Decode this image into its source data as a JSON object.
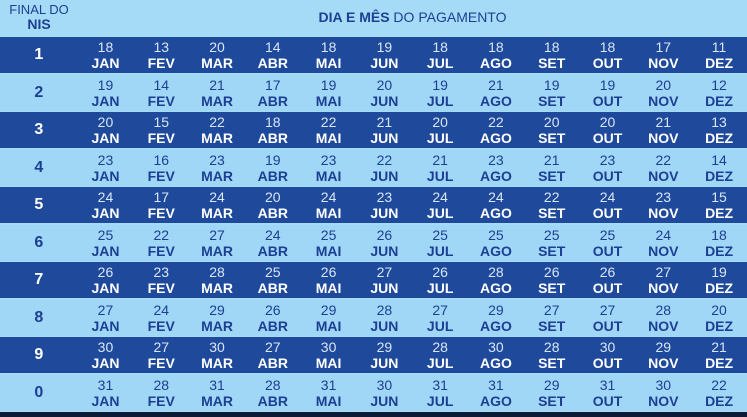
{
  "header": {
    "nis_label_top": "FINAL DO",
    "nis_label_bottom": "NIS",
    "title_bold": "DIA E MÊS",
    "title_rest": " DO PAGAMENTO"
  },
  "months": [
    "JAN",
    "FEV",
    "MAR",
    "ABR",
    "MAI",
    "JUN",
    "JUL",
    "AGO",
    "SET",
    "OUT",
    "NOV",
    "DEZ"
  ],
  "rows": [
    {
      "nis": "1",
      "days": [
        "18",
        "13",
        "20",
        "14",
        "18",
        "19",
        "18",
        "18",
        "18",
        "18",
        "17",
        "11"
      ]
    },
    {
      "nis": "2",
      "days": [
        "19",
        "14",
        "21",
        "17",
        "19",
        "20",
        "19",
        "21",
        "19",
        "19",
        "20",
        "12"
      ]
    },
    {
      "nis": "3",
      "days": [
        "20",
        "15",
        "22",
        "18",
        "22",
        "21",
        "20",
        "22",
        "20",
        "20",
        "21",
        "13"
      ]
    },
    {
      "nis": "4",
      "days": [
        "23",
        "16",
        "23",
        "19",
        "23",
        "22",
        "21",
        "23",
        "21",
        "23",
        "22",
        "14"
      ]
    },
    {
      "nis": "5",
      "days": [
        "24",
        "17",
        "24",
        "20",
        "24",
        "23",
        "24",
        "24",
        "22",
        "24",
        "23",
        "15"
      ]
    },
    {
      "nis": "6",
      "days": [
        "25",
        "22",
        "27",
        "24",
        "25",
        "26",
        "25",
        "25",
        "25",
        "25",
        "24",
        "18"
      ]
    },
    {
      "nis": "7",
      "days": [
        "26",
        "23",
        "28",
        "25",
        "26",
        "27",
        "26",
        "28",
        "26",
        "26",
        "27",
        "19"
      ]
    },
    {
      "nis": "8",
      "days": [
        "27",
        "24",
        "29",
        "26",
        "29",
        "28",
        "27",
        "29",
        "27",
        "27",
        "28",
        "20"
      ]
    },
    {
      "nis": "9",
      "days": [
        "30",
        "27",
        "30",
        "27",
        "30",
        "29",
        "28",
        "30",
        "28",
        "30",
        "29",
        "21"
      ]
    },
    {
      "nis": "0",
      "days": [
        "31",
        "28",
        "31",
        "28",
        "31",
        "30",
        "31",
        "31",
        "29",
        "31",
        "30",
        "22"
      ]
    }
  ]
}
